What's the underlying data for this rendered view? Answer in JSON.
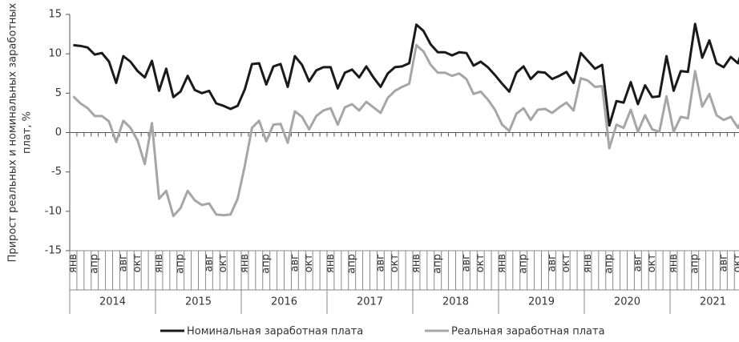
{
  "chart_data": {
    "type": "line",
    "ylabel": [
      "Прирост реальных и номинальных заработных",
      "плат, %"
    ],
    "categories": [
      "янв",
      null,
      null,
      "апр",
      null,
      null,
      null,
      "авг",
      null,
      "окт",
      null,
      null,
      "янв",
      null,
      null,
      "апр",
      null,
      null,
      null,
      "авг",
      null,
      "окт",
      null,
      null,
      "янв",
      null,
      null,
      "апр",
      null,
      null,
      null,
      "авг",
      null,
      "окт",
      null,
      null,
      "янв",
      null,
      null,
      "апр",
      null,
      null,
      null,
      "авг",
      null,
      "окт",
      null,
      null,
      "янв",
      null,
      null,
      "апр",
      null,
      null,
      null,
      "авг",
      null,
      "окт",
      null,
      null,
      "янв",
      null,
      null,
      "апр",
      null,
      null,
      null,
      "авг",
      null,
      "окт",
      null,
      null,
      "янв",
      null,
      null,
      "апр",
      null,
      null,
      null,
      "авг",
      null,
      "окт",
      null,
      null,
      "янв",
      null,
      null,
      "апр",
      null,
      null,
      null,
      "авг",
      null,
      "окт",
      null
    ],
    "years": [
      "2014",
      "2015",
      "2016",
      "2017",
      "2018",
      "2019",
      "2020",
      "2021"
    ],
    "ylim": [
      -15,
      15
    ],
    "yticks": [
      -15,
      -10,
      -5,
      0,
      5,
      10,
      15
    ],
    "grid": false,
    "series": [
      {
        "name": "Номинальная заработная плата",
        "color": "#1a1a1a",
        "values": [
          11.1,
          11.0,
          10.8,
          9.9,
          10.1,
          9.0,
          6.3,
          9.7,
          9.0,
          7.8,
          7.0,
          9.1,
          5.3,
          8.1,
          4.5,
          5.2,
          7.2,
          5.4,
          5.0,
          5.3,
          3.7,
          3.4,
          3.0,
          3.4,
          5.5,
          8.7,
          8.8,
          6.1,
          8.4,
          8.7,
          5.8,
          9.7,
          8.6,
          6.5,
          7.9,
          8.3,
          8.3,
          5.6,
          7.6,
          8.0,
          7.0,
          8.4,
          7.0,
          5.8,
          7.5,
          8.3,
          8.4,
          8.8,
          13.7,
          12.9,
          11.2,
          10.2,
          10.2,
          9.8,
          10.2,
          10.1,
          8.5,
          9.0,
          8.3,
          7.3,
          6.2,
          5.2,
          7.6,
          8.4,
          6.8,
          7.7,
          7.6,
          6.8,
          7.2,
          7.7,
          6.3,
          10.1,
          9.1,
          8.1,
          8.6,
          0.9,
          4.0,
          3.8,
          6.4,
          3.6,
          6.0,
          4.5,
          4.6,
          9.7,
          5.3,
          7.8,
          7.7,
          13.8,
          9.5,
          11.7,
          8.8,
          8.3,
          9.6,
          8.8,
          11.6
        ]
      },
      {
        "name": "Реальная заработная плата",
        "color": "#a6a6a6",
        "values": [
          4.6,
          3.7,
          3.1,
          2.1,
          2.1,
          1.4,
          -1.2,
          1.5,
          0.6,
          -1.0,
          -4.0,
          1.2,
          -8.4,
          -7.4,
          -10.6,
          -9.6,
          -7.4,
          -8.6,
          -9.2,
          -9.0,
          -10.4,
          -10.5,
          -10.4,
          -8.4,
          -4.2,
          0.6,
          1.5,
          -1.1,
          1.0,
          1.1,
          -1.3,
          2.7,
          2.0,
          0.4,
          2.1,
          2.8,
          3.1,
          1.0,
          3.2,
          3.6,
          2.8,
          3.9,
          3.2,
          2.5,
          4.4,
          5.3,
          5.8,
          6.2,
          11.1,
          10.3,
          8.6,
          7.6,
          7.6,
          7.2,
          7.5,
          6.8,
          4.9,
          5.2,
          4.2,
          2.9,
          1.0,
          0.2,
          2.4,
          3.1,
          1.6,
          2.9,
          3.0,
          2.5,
          3.2,
          3.8,
          2.8,
          6.9,
          6.6,
          5.8,
          5.9,
          -2.0,
          1.0,
          0.6,
          2.9,
          0.1,
          2.2,
          0.4,
          0.1,
          4.6,
          0.1,
          2.0,
          1.8,
          7.8,
          3.3,
          4.9,
          2.2,
          1.6,
          2.0,
          0.6,
          2.6
        ]
      }
    ]
  }
}
